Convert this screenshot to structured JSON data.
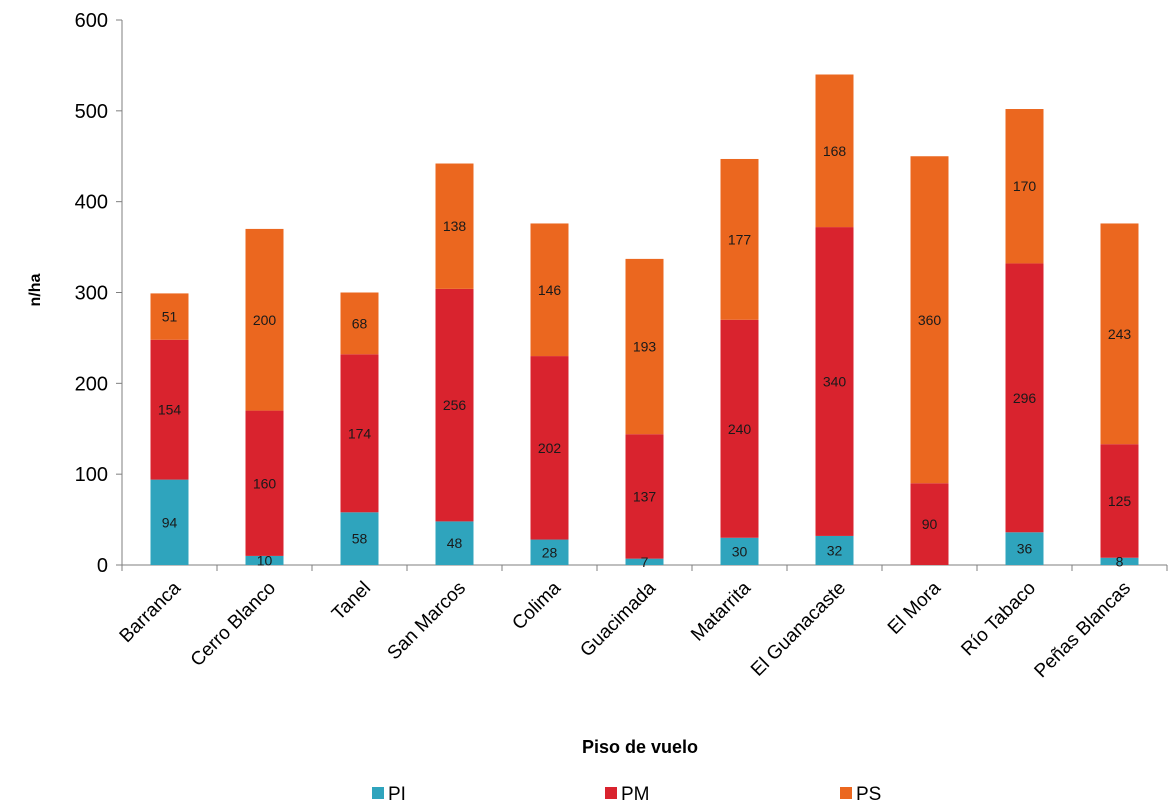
{
  "chart_data": {
    "type": "bar",
    "stacked": true,
    "title": "",
    "xlabel": "Piso de vuelo",
    "ylabel": "n/ha",
    "ylim": [
      0,
      600
    ],
    "yticks": [
      0,
      100,
      200,
      300,
      400,
      500,
      600
    ],
    "grid": false,
    "legend_position": "bottom",
    "categories": [
      "Barranca",
      "Cerro Blanco",
      "Tanel",
      "San Marcos",
      "Colima",
      "Guacimada",
      "Matarrita",
      "El Guanacaste",
      "El Mora",
      "Río Tabaco",
      "Peñas Blancas"
    ],
    "series": [
      {
        "name": "PI",
        "color": "#2fa4bd",
        "values": [
          94,
          10,
          58,
          48,
          28,
          7,
          30,
          32,
          0,
          36,
          8
        ],
        "labels": [
          "94",
          "10",
          "58",
          "48",
          "28",
          "7",
          "30",
          "32",
          "",
          "36",
          "8"
        ]
      },
      {
        "name": "PM",
        "color": "#d9232e",
        "values": [
          154,
          160,
          174,
          256,
          202,
          137,
          240,
          340,
          90,
          296,
          125
        ],
        "labels": [
          "154",
          "160",
          "174",
          "256",
          "202",
          "137",
          "240",
          "340",
          "90",
          "296",
          "125"
        ]
      },
      {
        "name": "PS",
        "color": "#eb671f",
        "values": [
          51,
          200,
          68,
          138,
          146,
          193,
          177,
          168,
          360,
          170,
          243
        ],
        "labels": [
          "51",
          "200",
          "68",
          "138",
          "146",
          "193",
          "177",
          "168",
          "360",
          "170",
          "243"
        ]
      }
    ]
  }
}
